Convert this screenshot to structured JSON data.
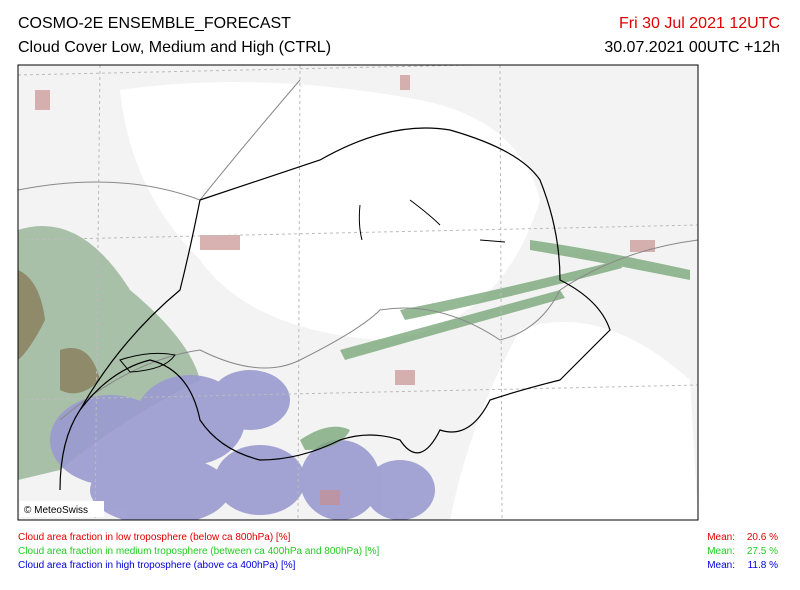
{
  "header": {
    "title": "COSMO-2E ENSEMBLE_FORECAST",
    "subtitle": "Cloud Cover Low, Medium and High (CTRL)",
    "valid_time": "Fri 30 Jul 2021 12UTC",
    "run": "30.07.2021 00UTC +12h"
  },
  "map": {
    "copyright": "© MeteoSwiss"
  },
  "legend": {
    "items": [
      {
        "label": "Cloud area fraction in low troposphere (below ca 800hPa) [%]",
        "mean_label": "Mean:",
        "mean": "20.6 %"
      },
      {
        "label": "Cloud area fraction in medium troposphere (between ca 400hPa and 800hPa) [%]",
        "mean_label": "Mean:",
        "mean": "27.5 %"
      },
      {
        "label": "Cloud area fraction in high troposphere (above ca 400hPa) [%]",
        "mean_label": "Mean:",
        "mean": "11.8 %"
      }
    ]
  }
}
